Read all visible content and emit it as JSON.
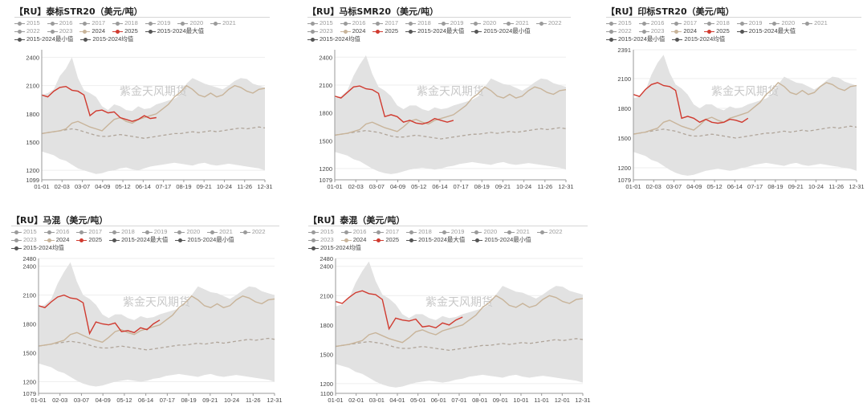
{
  "watermark": "紫金天风期货",
  "legend_years": [
    "2015",
    "2016",
    "2017",
    "2018",
    "2019",
    "2020",
    "2021",
    "2022",
    "2023",
    "2024",
    "2025"
  ],
  "legend_stats": [
    "2015-2024最大值",
    "2015-2024最小值",
    "2015-2024均值"
  ],
  "colors": {
    "y2024": "#c8b49a",
    "y2025": "#d03a2f",
    "band": "#e2e2e2",
    "mean": "#b0a59a",
    "stat": "#555555",
    "inactive": "#bbbbbb"
  },
  "charts": [
    {
      "id": "p1",
      "title": "【RU】泰标STR20（美元/吨）",
      "yticks": [
        "2400",
        "2100",
        "1800",
        "1500",
        "1200",
        "1099"
      ],
      "xticks": [
        "01-01",
        "02-03",
        "03-07",
        "04-09",
        "05-12",
        "06-14",
        "07-17",
        "08-19",
        "09-21",
        "10-24",
        "11-26",
        "12-31"
      ],
      "chart_data": {
        "type": "line",
        "ylim": [
          1099,
          2480
        ],
        "band_top": [
          2000,
          2020,
          2060,
          2200,
          2280,
          2400,
          2180,
          2050,
          2020,
          1980,
          1880,
          1840,
          1900,
          1880,
          1840,
          1830,
          1880,
          1850,
          1860,
          1900,
          1920,
          1940,
          1960,
          2000,
          2120,
          2180,
          2150,
          2120,
          2100,
          2080,
          2060,
          2100,
          2150,
          2180,
          2170,
          2120,
          2100,
          2080
        ],
        "band_bottom": [
          1400,
          1380,
          1360,
          1320,
          1300,
          1260,
          1220,
          1200,
          1180,
          1160,
          1170,
          1190,
          1200,
          1220,
          1230,
          1210,
          1200,
          1220,
          1240,
          1250,
          1260,
          1270,
          1280,
          1270,
          1260,
          1250,
          1270,
          1280,
          1260,
          1250,
          1260,
          1270,
          1260,
          1250,
          1240,
          1230,
          1220,
          1200
        ],
        "mean": [
          1590,
          1600,
          1610,
          1620,
          1630,
          1640,
          1630,
          1610,
          1590,
          1570,
          1560,
          1560,
          1570,
          1580,
          1570,
          1560,
          1550,
          1540,
          1550,
          1560,
          1570,
          1580,
          1590,
          1590,
          1600,
          1610,
          1600,
          1610,
          1620,
          1610,
          1620,
          1630,
          1640,
          1650,
          1640,
          1650,
          1660,
          1650
        ],
        "series": [
          {
            "name": "2024",
            "values": [
              1590,
              1600,
              1610,
              1620,
              1640,
              1700,
              1720,
              1690,
              1660,
              1640,
              1620,
              1680,
              1740,
              1760,
              1720,
              1700,
              1740,
              1760,
              1780,
              1800,
              1850,
              1900,
              1980,
              2030,
              2100,
              2060,
              2000,
              1980,
              2020,
              1980,
              2000,
              2060,
              2100,
              2080,
              2040,
              2020,
              2060,
              2070
            ]
          },
          {
            "name": "2025",
            "values": [
              2000,
              1980,
              2040,
              2080,
              2090,
              2050,
              2040,
              2000,
              1780,
              1830,
              1840,
              1810,
              1820,
              1760,
              1740,
              1720,
              1740,
              1780,
              1750,
              1760
            ]
          }
        ]
      }
    },
    {
      "id": "p2",
      "title": "【RU】马标SMR20（美元/吨）",
      "yticks": [
        "2400",
        "2100",
        "1800",
        "1500",
        "1200",
        "1079"
      ],
      "xticks": [
        "01-01",
        "02-03",
        "03-07",
        "04-09",
        "05-12",
        "06-14",
        "07-17",
        "08-19",
        "09-21",
        "10-24",
        "11-26",
        "12-31"
      ],
      "chart_data": {
        "type": "line",
        "ylim": [
          1079,
          2480
        ],
        "band_top": [
          1960,
          1980,
          2040,
          2200,
          2320,
          2420,
          2220,
          2080,
          2040,
          1980,
          1880,
          1840,
          1880,
          1880,
          1840,
          1820,
          1860,
          1840,
          1850,
          1880,
          1900,
          1920,
          1940,
          1980,
          2080,
          2170,
          2140,
          2110,
          2100,
          2070,
          2040,
          2080,
          2130,
          2170,
          2160,
          2120,
          2100,
          2080
        ],
        "band_bottom": [
          1380,
          1360,
          1340,
          1300,
          1280,
          1240,
          1200,
          1170,
          1150,
          1140,
          1150,
          1170,
          1190,
          1200,
          1210,
          1200,
          1190,
          1200,
          1220,
          1230,
          1250,
          1260,
          1270,
          1260,
          1250,
          1240,
          1260,
          1270,
          1250,
          1240,
          1250,
          1260,
          1250,
          1240,
          1230,
          1220,
          1210,
          1190
        ],
        "mean": [
          1560,
          1570,
          1580,
          1590,
          1600,
          1610,
          1600,
          1590,
          1570,
          1550,
          1540,
          1540,
          1550,
          1560,
          1550,
          1540,
          1530,
          1520,
          1530,
          1540,
          1550,
          1560,
          1570,
          1570,
          1580,
          1590,
          1580,
          1590,
          1600,
          1590,
          1600,
          1610,
          1620,
          1630,
          1620,
          1630,
          1640,
          1630
        ],
        "series": [
          {
            "name": "2024",
            "values": [
              1560,
              1570,
              1580,
              1600,
              1620,
              1680,
              1700,
              1670,
              1640,
              1620,
              1600,
              1650,
              1710,
              1730,
              1700,
              1680,
              1720,
              1740,
              1760,
              1780,
              1830,
              1880,
              1960,
              2010,
              2080,
              2040,
              1980,
              1960,
              2000,
              1960,
              1980,
              2040,
              2080,
              2060,
              2020,
              2000,
              2040,
              2050
            ]
          },
          {
            "name": "2025",
            "values": [
              1980,
              1960,
              2020,
              2080,
              2090,
              2060,
              2050,
              2010,
              1760,
              1780,
              1760,
              1700,
              1720,
              1690,
              1680,
              1700,
              1740,
              1720,
              1700,
              1720
            ]
          }
        ]
      }
    },
    {
      "id": "p3",
      "title": "【RU】印标STR20（美元/吨）",
      "yticks": [
        "2391",
        "2100",
        "1800",
        "1500",
        "1200",
        "1079"
      ],
      "xticks": [
        "01-01",
        "02-03",
        "03-07",
        "04-09",
        "05-12",
        "06-14",
        "07-17",
        "08-19",
        "09-21",
        "10-24",
        "11-26",
        "12-31"
      ],
      "chart_data": {
        "type": "line",
        "ylim": [
          1079,
          2391
        ],
        "band_top": [
          1900,
          1920,
          1980,
          2140,
          2260,
          2340,
          2160,
          2040,
          2000,
          1940,
          1840,
          1800,
          1840,
          1840,
          1800,
          1780,
          1820,
          1800,
          1810,
          1840,
          1860,
          1880,
          1900,
          1940,
          2040,
          2120,
          2090,
          2060,
          2050,
          2020,
          1990,
          2030,
          2080,
          2120,
          2110,
          2070,
          2050,
          2030
        ],
        "band_bottom": [
          1360,
          1340,
          1320,
          1280,
          1260,
          1220,
          1180,
          1150,
          1130,
          1120,
          1130,
          1150,
          1170,
          1180,
          1190,
          1180,
          1170,
          1180,
          1200,
          1210,
          1230,
          1240,
          1250,
          1240,
          1230,
          1220,
          1240,
          1250,
          1230,
          1220,
          1230,
          1240,
          1230,
          1220,
          1210,
          1200,
          1190,
          1170
        ],
        "mean": [
          1540,
          1550,
          1560,
          1570,
          1580,
          1590,
          1580,
          1570,
          1550,
          1530,
          1520,
          1520,
          1530,
          1540,
          1530,
          1520,
          1510,
          1500,
          1510,
          1520,
          1530,
          1540,
          1550,
          1550,
          1560,
          1570,
          1560,
          1570,
          1580,
          1570,
          1580,
          1590,
          1600,
          1610,
          1600,
          1610,
          1620,
          1610
        ],
        "series": [
          {
            "name": "2024",
            "values": [
              1540,
              1550,
              1560,
              1580,
              1600,
              1660,
              1680,
              1650,
              1620,
              1600,
              1580,
              1630,
              1690,
              1710,
              1680,
              1660,
              1700,
              1720,
              1740,
              1760,
              1810,
              1860,
              1940,
              1990,
              2060,
              2020,
              1960,
              1940,
              1980,
              1940,
              1960,
              2020,
              2060,
              2040,
              2000,
              1980,
              2020,
              2030
            ]
          },
          {
            "name": "2025",
            "values": [
              1940,
              1920,
              1990,
              2040,
              2060,
              2030,
              2020,
              1980,
              1700,
              1720,
              1700,
              1660,
              1690,
              1660,
              1650,
              1660,
              1690,
              1680,
              1660,
              1700
            ]
          }
        ]
      }
    },
    {
      "id": "p4",
      "title": "【RU】马混（美元/吨）",
      "yticks": [
        "2480",
        "2400",
        "2100",
        "1800",
        "1500",
        "1200",
        "1079"
      ],
      "xticks": [
        "01-01",
        "02-03",
        "03-07",
        "04-09",
        "05-12",
        "06-14",
        "07-17",
        "08-19",
        "09-21",
        "10-24",
        "11-26",
        "12-31"
      ],
      "chart_data": {
        "type": "line",
        "ylim": [
          1079,
          2480
        ],
        "band_top": [
          1980,
          2000,
          2060,
          2220,
          2340,
          2440,
          2240,
          2100,
          2060,
          2000,
          1900,
          1860,
          1900,
          1900,
          1860,
          1840,
          1880,
          1860,
          1870,
          1900,
          1920,
          1940,
          1960,
          2000,
          2100,
          2190,
          2160,
          2130,
          2120,
          2090,
          2060,
          2100,
          2150,
          2190,
          2180,
          2140,
          2120,
          2100
        ],
        "band_bottom": [
          1390,
          1370,
          1350,
          1310,
          1290,
          1250,
          1210,
          1180,
          1160,
          1150,
          1160,
          1180,
          1200,
          1210,
          1220,
          1210,
          1200,
          1210,
          1230,
          1240,
          1260,
          1270,
          1280,
          1270,
          1260,
          1250,
          1270,
          1280,
          1260,
          1250,
          1260,
          1270,
          1260,
          1250,
          1240,
          1230,
          1220,
          1200
        ],
        "mean": [
          1570,
          1580,
          1590,
          1600,
          1610,
          1620,
          1610,
          1600,
          1580,
          1560,
          1550,
          1550,
          1560,
          1570,
          1560,
          1550,
          1540,
          1530,
          1540,
          1550,
          1560,
          1570,
          1580,
          1580,
          1590,
          1600,
          1590,
          1600,
          1610,
          1600,
          1610,
          1620,
          1630,
          1640,
          1630,
          1640,
          1650,
          1640
        ],
        "series": [
          {
            "name": "2024",
            "values": [
              1570,
              1580,
              1590,
              1610,
              1630,
              1690,
              1710,
              1680,
              1650,
              1630,
              1610,
              1660,
              1720,
              1740,
              1710,
              1690,
              1730,
              1750,
              1770,
              1790,
              1840,
              1890,
              1970,
              2020,
              2090,
              2050,
              1990,
              1970,
              2010,
              1970,
              1990,
              2050,
              2090,
              2070,
              2030,
              2010,
              2050,
              2060
            ]
          },
          {
            "name": "2025",
            "values": [
              1990,
              1970,
              2030,
              2080,
              2100,
              2070,
              2060,
              2020,
              1700,
              1820,
              1800,
              1790,
              1810,
              1720,
              1730,
              1710,
              1760,
              1740,
              1800,
              1840
            ]
          }
        ]
      }
    },
    {
      "id": "p5",
      "title": "【RU】泰混（美元/吨）",
      "yticks": [
        "2480",
        "2400",
        "2100",
        "1800",
        "1500",
        "1200",
        "1100"
      ],
      "xticks": [
        "01-01",
        "02-01",
        "03-01",
        "04-01",
        "05-01",
        "06-01",
        "07-01",
        "08-01",
        "09-01",
        "10-01",
        "11-01",
        "12-01",
        "12-31"
      ],
      "chart_data": {
        "type": "line",
        "ylim": [
          1100,
          2480
        ],
        "band_top": [
          1990,
          2010,
          2070,
          2230,
          2350,
          2450,
          2250,
          2110,
          2070,
          2010,
          1910,
          1870,
          1910,
          1910,
          1870,
          1850,
          1890,
          1870,
          1880,
          1910,
          1930,
          1950,
          1970,
          2010,
          2110,
          2200,
          2170,
          2140,
          2130,
          2100,
          2070,
          2110,
          2160,
          2200,
          2190,
          2150,
          2130,
          2110
        ],
        "band_bottom": [
          1400,
          1380,
          1360,
          1320,
          1300,
          1260,
          1220,
          1190,
          1170,
          1160,
          1170,
          1190,
          1210,
          1220,
          1230,
          1220,
          1210,
          1220,
          1240,
          1250,
          1270,
          1280,
          1290,
          1280,
          1270,
          1260,
          1280,
          1290,
          1270,
          1260,
          1270,
          1280,
          1270,
          1260,
          1250,
          1240,
          1230,
          1210
        ],
        "mean": [
          1580,
          1590,
          1600,
          1610,
          1620,
          1630,
          1620,
          1610,
          1590,
          1570,
          1560,
          1560,
          1570,
          1580,
          1570,
          1560,
          1550,
          1540,
          1550,
          1560,
          1570,
          1580,
          1590,
          1590,
          1600,
          1610,
          1600,
          1610,
          1620,
          1610,
          1620,
          1630,
          1640,
          1650,
          1640,
          1650,
          1660,
          1650
        ],
        "series": [
          {
            "name": "2024",
            "values": [
              1580,
              1590,
              1600,
              1620,
              1640,
              1700,
              1720,
              1690,
              1660,
              1640,
              1620,
              1670,
              1730,
              1750,
              1720,
              1700,
              1740,
              1760,
              1780,
              1800,
              1850,
              1900,
              1980,
              2030,
              2100,
              2060,
              2000,
              1980,
              2020,
              1980,
              2000,
              2060,
              2100,
              2080,
              2040,
              2020,
              2060,
              2070
            ]
          },
          {
            "name": "2025",
            "values": [
              2040,
              2020,
              2080,
              2130,
              2150,
              2120,
              2110,
              2060,
              1760,
              1870,
              1850,
              1840,
              1860,
              1780,
              1790,
              1770,
              1820,
              1800,
              1850,
              1880
            ]
          }
        ]
      }
    }
  ]
}
